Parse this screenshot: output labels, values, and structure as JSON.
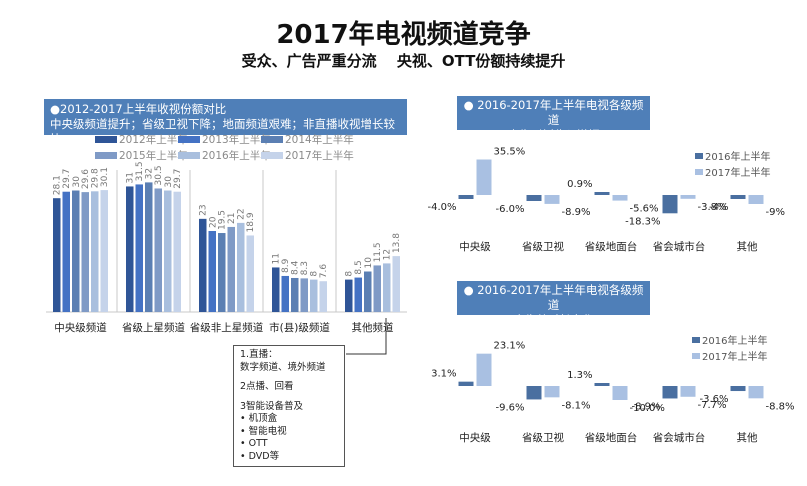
{
  "page": {
    "title": "2017年电视频道竞争",
    "subtitle": "受众、广告严重分流　 央视、OTT份额持续提升"
  },
  "colors": {
    "header_bg": "#4f7fb8",
    "series": [
      "#2f5597",
      "#4472c4",
      "#5b7fb3",
      "#7f9ac6",
      "#a9bfde",
      "#c5d3ea"
    ],
    "pair_dark": "#4a6fa0",
    "pair_light": "#a9c0e2"
  },
  "left_panel": {
    "header_line1": "●2012-2017上半年收视份额对比",
    "header_line2": "中央级频道提升；省级卫视下降；地面频道艰难；非直播收视增长较快"
  },
  "right_top_panel": {
    "header_line1": "● 2016-2017年上半年电视各级频道",
    "header_line2": "广告刊例收入增幅"
  },
  "right_bottom_panel": {
    "header_line1": "● 2016-2017年上半年电视各级频道",
    "header_line2": "广告总时长变化"
  },
  "note": {
    "l1": "1.直播：",
    "l2": "数字频道、境外频道",
    "l3": "2点播、回看",
    "l4": "3智能设备普及",
    "l5": "• 机顶盒",
    "l6": "• 智能电视",
    "l7": "• OTT",
    "l8": "• DVD等"
  },
  "chart_data": [
    {
      "type": "bar",
      "title": "2012-2017上半年收视份额对比",
      "categories": [
        "中央级频道",
        "省级上星频道",
        "省级非上星频道",
        "市(县)级频道",
        "其他频道"
      ],
      "series": [
        {
          "name": "2012年上半年",
          "values": [
            28.1,
            31,
            23,
            11,
            8
          ]
        },
        {
          "name": "2013年上半年",
          "values": [
            29.7,
            31.5,
            20,
            8.9,
            8.5
          ]
        },
        {
          "name": "2014年上半年",
          "values": [
            30,
            32,
            19.5,
            8.4,
            10
          ]
        },
        {
          "name": "2015年上半年",
          "values": [
            29.6,
            30.5,
            21,
            8.3,
            11.5
          ]
        },
        {
          "name": "2016年上半年",
          "values": [
            29.8,
            30,
            22,
            8,
            12
          ]
        },
        {
          "name": "2017年上半年",
          "values": [
            30.1,
            29.7,
            18.9,
            7.6,
            13.8
          ]
        }
      ],
      "data_labels": [
        [
          "28.1",
          "29.7",
          "30",
          "29.6",
          "29.8",
          "30.1"
        ],
        [
          "31",
          "31.5",
          "32",
          "30.5",
          "30",
          "29.7"
        ],
        [
          "23",
          "20",
          "19.5",
          "21",
          "22",
          "18.9"
        ],
        [
          "11",
          "8.9",
          "8.4",
          "8.3",
          "8",
          "7.6"
        ],
        [
          "8",
          "8.5",
          "10",
          "11.5",
          "12",
          "13.8"
        ]
      ],
      "ylim": [
        0,
        40
      ],
      "legend": "top"
    },
    {
      "type": "bar",
      "title": "2016-2017年上半年电视各级频道广告刊例收入增幅",
      "categories": [
        "中央级",
        "省级卫视",
        "省级地面台",
        "省会城市台",
        "其他"
      ],
      "series": [
        {
          "name": "2016年上半年",
          "values": [
            -4.0,
            -6.0,
            0.9,
            -18.3,
            -4.0
          ]
        },
        {
          "name": "2017年上半年",
          "values": [
            35.5,
            -8.9,
            -5.6,
            -3.8,
            -9.0
          ]
        }
      ],
      "data_labels": [
        [
          "-4.0%",
          "35.5%"
        ],
        [
          "-6.0%",
          "-8.9%"
        ],
        [
          "0.9%",
          "-5.6%"
        ],
        [
          "-18.3%",
          "-3.8%"
        ],
        [
          "-4%",
          "-9%"
        ]
      ],
      "unit": "%",
      "legend": "right"
    },
    {
      "type": "bar",
      "title": "2016-2017年上半年电视各级频道广告总时长变化",
      "categories": [
        "中央级",
        "省级卫视",
        "省级地面台",
        "省会城市台",
        "其他"
      ],
      "series": [
        {
          "name": "2016年上半年",
          "values": [
            3.1,
            -9.6,
            1.3,
            -8.9,
            -3.6
          ]
        },
        {
          "name": "2017年上半年",
          "values": [
            23.1,
            -8.1,
            -10.0,
            -7.7,
            -8.8
          ]
        }
      ],
      "data_labels": [
        [
          "3.1%",
          "23.1%"
        ],
        [
          "-9.6%",
          "-8.1%"
        ],
        [
          "1.3%",
          "-10.0%"
        ],
        [
          "-8.9%",
          "-7.7%"
        ],
        [
          "-3.6%",
          "-8.8%"
        ]
      ],
      "unit": "%",
      "legend": "right"
    }
  ]
}
